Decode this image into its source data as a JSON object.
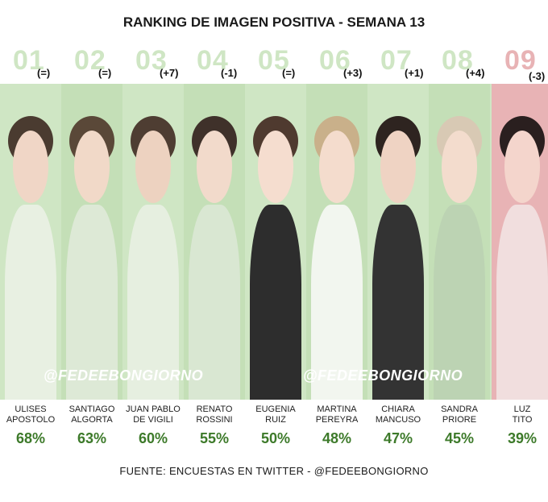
{
  "chart_data": {
    "type": "bar",
    "title": "RANKING DE IMAGEN POSITIVA - SEMANA 13",
    "ranks": [
      "01",
      "02",
      "03",
      "04",
      "05",
      "06",
      "07",
      "08",
      "09"
    ],
    "changes": [
      "(=)",
      "(=)",
      "(+7)",
      "(-1)",
      "(=)",
      "(+3)",
      "(+1)",
      "(+4)",
      "(-3)"
    ],
    "names": [
      [
        "ULISES",
        "APOSTOLO"
      ],
      [
        "SANTIAGO",
        "ALGORTA"
      ],
      [
        "JUAN PABLO",
        "DE VIGILI"
      ],
      [
        "RENATO",
        "ROSSINI"
      ],
      [
        "EUGENIA",
        "RUIZ"
      ],
      [
        "MARTINA",
        "PEREYRA"
      ],
      [
        "CHIARA",
        "MANCUSO"
      ],
      [
        "SANDRA",
        "PRIORE"
      ],
      [
        "LUZ",
        "TITO"
      ]
    ],
    "values": [
      68,
      63,
      60,
      55,
      50,
      48,
      47,
      45,
      39
    ],
    "value_labels": [
      "68%",
      "63%",
      "60%",
      "55%",
      "50%",
      "48%",
      "47%",
      "45%",
      "39%"
    ],
    "unit": "%"
  },
  "watermark": "@FEDEEBONGIORNO",
  "source": "FUENTE: ENCUESTAS EN TWITTER - @FEDEEBONGIORNO",
  "colors": {
    "positive_bg": "#cfe6c4",
    "negative_bg": "#e8b3b5",
    "value_text": "#3d7a2a"
  }
}
